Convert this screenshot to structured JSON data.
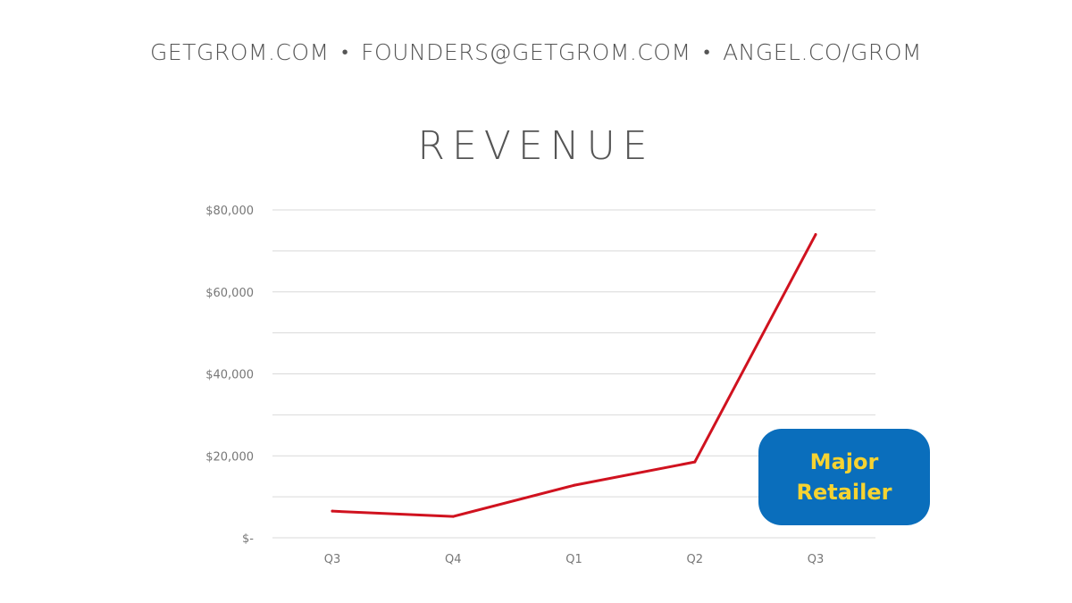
{
  "header": {
    "website": "GETGROM.COM",
    "email": "FOUNDERS@GETGROM.COM",
    "angellist": "ANGEL.CO/GROM",
    "separator": "•"
  },
  "colors": {
    "line": "#d0121f",
    "callout_bg": "#0a6ebc",
    "callout_text": "#f6d331"
  },
  "chart_data": {
    "type": "line",
    "title": "REVENUE",
    "xlabel": "",
    "ylabel": "",
    "categories": [
      "Q3",
      "Q4",
      "Q1",
      "Q2",
      "Q3"
    ],
    "series": [
      {
        "values": [
          6500,
          5200,
          12800,
          18500,
          74000
        ]
      }
    ],
    "ylim": [
      0,
      80000
    ],
    "yticks": [
      0,
      20000,
      40000,
      60000,
      80000
    ],
    "ytick_labels": [
      "$-",
      "$20,000",
      "$40,000",
      "$60,000",
      "$80,000"
    ],
    "grid": true,
    "legend": "none",
    "annotation": {
      "line1": "Major",
      "line2": "Retailer",
      "placement": "bottom-right"
    }
  }
}
